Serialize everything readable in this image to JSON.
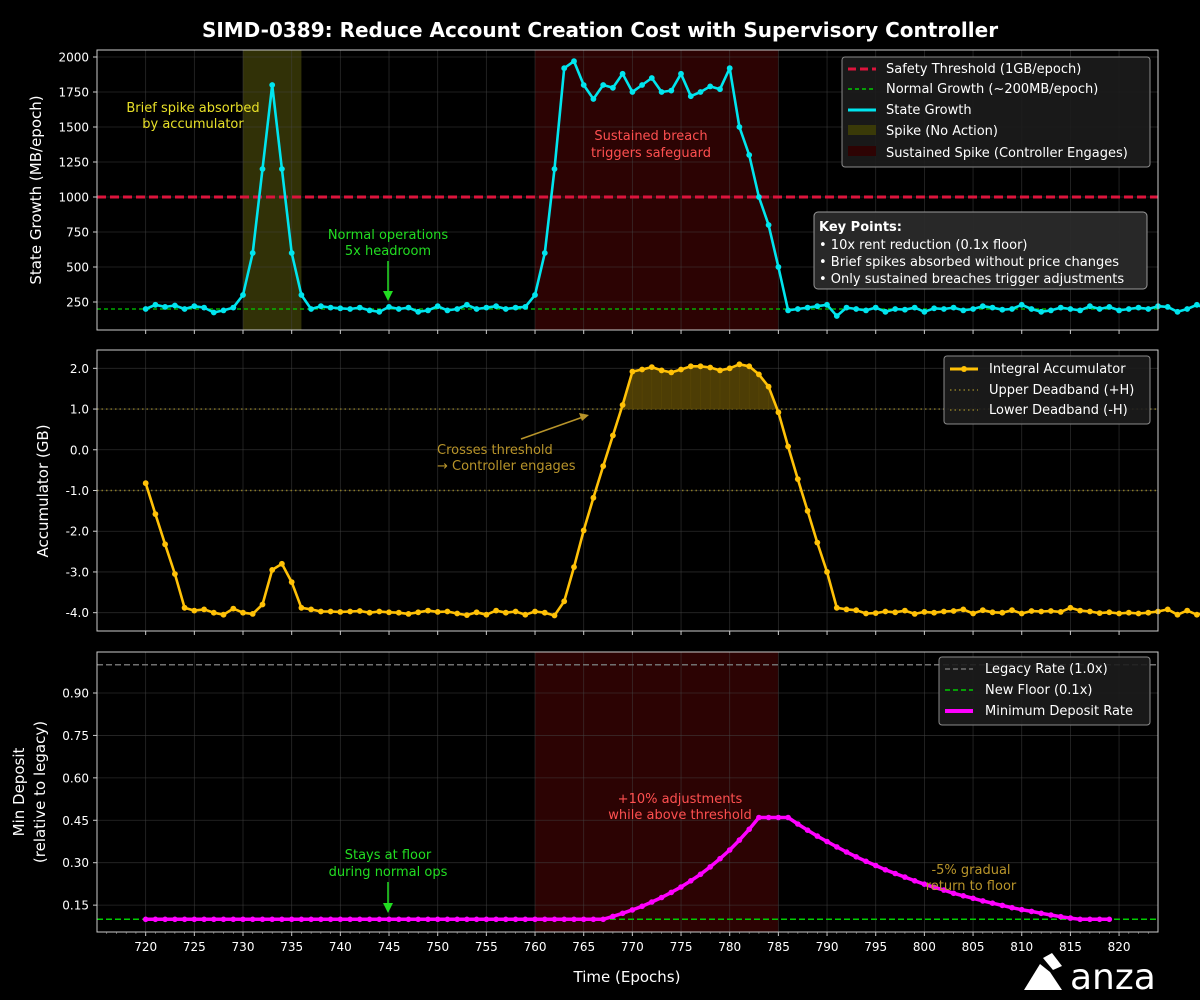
{
  "title": "SIMD-0389: Reduce Account Creation Cost with Supervisory Controller",
  "xlabel": "Time (Epochs)",
  "xticks": [
    720,
    725,
    730,
    735,
    740,
    745,
    750,
    755,
    760,
    765,
    770,
    775,
    780,
    785,
    790,
    795,
    800,
    805,
    810,
    815,
    820
  ],
  "logo_text": "anza",
  "colors": {
    "background": "#000000",
    "state": "#00e5ee",
    "accumulator": "#ffc107",
    "deposit": "#ff00ff",
    "threshold": "#dc143c",
    "normal": "#00cc00",
    "spike_fill": "#3a3a08",
    "sustained_fill": "#2e0303",
    "deadband": "#8a7a28",
    "legacy": "#707070",
    "text": "#ffffff",
    "grid": "#444444"
  },
  "chart_data": [
    {
      "type": "line",
      "ylabel": "State Growth (MB/epoch)",
      "xlim": [
        715,
        824
      ],
      "ylim": [
        50,
        2050
      ],
      "yticks": [
        250,
        500,
        750,
        1000,
        1250,
        1500,
        1750,
        2000
      ],
      "legend_position": "top-right",
      "grid": true,
      "legend": {
        "threshold": "Safety Threshold (1GB/epoch)",
        "normal": "Normal Growth (~200MB/epoch)",
        "state": "State Growth",
        "spike": "Spike (No Action)",
        "sustained": "Sustained Spike (Controller Engages)"
      },
      "threshold": 1000,
      "normal_level": 200,
      "spike_region": [
        730,
        736
      ],
      "sustained_region": [
        760,
        785
      ],
      "annotations": {
        "brief_line1": "Brief spike absorbed",
        "brief_line2": "by accumulator",
        "sustained_line1": "Sustained breach",
        "sustained_line2": "triggers safeguard",
        "normal_line1": "Normal operations",
        "normal_line2": "5x headroom"
      },
      "key_points": {
        "title": "Key Points:",
        "items": [
          "• 10x rent reduction (0.1x floor)",
          "• Brief spikes absorbed without price changes",
          "• Only sustained breaches trigger adjustments"
        ]
      },
      "x_start": 720,
      "series": [
        {
          "name": "State Growth",
          "values": [
            200,
            230,
            215,
            225,
            200,
            220,
            210,
            175,
            190,
            210,
            300,
            600,
            1200,
            1800,
            1200,
            600,
            300,
            200,
            220,
            210,
            205,
            200,
            210,
            190,
            180,
            215,
            200,
            210,
            180,
            190,
            220,
            190,
            200,
            230,
            200,
            210,
            220,
            200,
            210,
            215,
            300,
            600,
            1200,
            1920,
            1970,
            1800,
            1700,
            1800,
            1780,
            1880,
            1750,
            1800,
            1850,
            1750,
            1760,
            1880,
            1720,
            1750,
            1790,
            1770,
            1920,
            1500,
            1300,
            1000,
            800,
            500,
            190,
            200,
            210,
            220,
            230,
            150,
            210,
            200,
            190,
            210,
            180,
            200,
            195,
            210,
            180,
            205,
            200,
            210,
            190,
            200,
            220,
            210,
            195,
            200,
            230,
            200,
            180,
            190,
            210,
            200,
            190,
            220,
            200,
            215,
            190,
            200,
            210,
            200,
            220,
            215,
            180,
            200,
            230,
            200
          ]
        }
      ]
    },
    {
      "type": "line",
      "ylabel": "Accumulator (GB)",
      "xlim": [
        715,
        824
      ],
      "ylim": [
        -4.45,
        2.45
      ],
      "yticks": [
        2.0,
        1.0,
        0.0,
        -1.0,
        -2.0,
        -3.0,
        -4.0
      ],
      "ytick_labels": [
        "2.0",
        "1.0",
        "0.0",
        "-1.0",
        "-2.0",
        "-3.0",
        "-4.0"
      ],
      "legend_position": "top-right",
      "grid": true,
      "legend": {
        "acc": "Integral Accumulator",
        "upper": "Upper Deadband (+H)",
        "lower": "Lower Deadband (-H)"
      },
      "upper_deadband": 1.0,
      "lower_deadband": -1.0,
      "annotations": {
        "cross_line1": "Crosses threshold",
        "cross_line2": "→ Controller engages"
      },
      "x_start": 720,
      "series": [
        {
          "name": "Integral Accumulator",
          "values": [
            -0.82,
            -1.58,
            -2.32,
            -3.05,
            -3.88,
            -3.95,
            -3.92,
            -4.0,
            -4.05,
            -3.9,
            -4.0,
            -4.03,
            -3.8,
            -2.95,
            -2.8,
            -3.25,
            -3.88,
            -3.92,
            -3.97,
            -3.97,
            -3.98,
            -3.97,
            -3.96,
            -4.0,
            -3.97,
            -3.99,
            -4.0,
            -4.03,
            -3.99,
            -3.95,
            -3.98,
            -3.97,
            -4.02,
            -4.06,
            -3.99,
            -4.05,
            -3.95,
            -4.0,
            -3.97,
            -4.05,
            -3.97,
            -4.0,
            -4.07,
            -3.72,
            -2.88,
            -1.98,
            -1.18,
            -0.4,
            0.35,
            1.1,
            1.92,
            1.97,
            2.03,
            1.95,
            1.9,
            1.97,
            2.05,
            2.05,
            2.02,
            1.95,
            2.0,
            2.1,
            2.05,
            1.85,
            1.55,
            0.92,
            0.08,
            -0.72,
            -1.5,
            -2.28,
            -3.0,
            -3.88,
            -3.92,
            -3.94,
            -4.02,
            -4.01,
            -3.97,
            -3.99,
            -3.95,
            -4.03,
            -3.98,
            -4.0,
            -3.97,
            -3.96,
            -3.92,
            -4.02,
            -3.94,
            -3.99,
            -4.0,
            -3.94,
            -4.02,
            -3.96,
            -3.97,
            -3.96,
            -3.98,
            -3.88,
            -3.95,
            -3.97,
            -4.01,
            -3.99,
            -4.02,
            -4.0,
            -4.02,
            -4.0,
            -3.97,
            -3.92,
            -4.05,
            -3.95,
            -4.05,
            -3.98,
            -3.93
          ]
        }
      ]
    },
    {
      "type": "line",
      "ylabel": "Min Deposit",
      "ylabel2": "(relative to legacy)",
      "xlim": [
        715,
        824
      ],
      "ylim": [
        0.055,
        1.045
      ],
      "yticks": [
        0.15,
        0.3,
        0.45,
        0.6,
        0.75,
        0.9
      ],
      "ytick_labels": [
        "0.15",
        "0.30",
        "0.45",
        "0.60",
        "0.75",
        "0.90"
      ],
      "legend_position": "top-right",
      "grid": true,
      "legend": {
        "legacy": "Legacy Rate (1.0x)",
        "floor": "New Floor (0.1x)",
        "rate": "Minimum Deposit Rate"
      },
      "legacy_level": 1.0,
      "floor_level": 0.1,
      "sustained_region": [
        760,
        785
      ],
      "annotations": {
        "adjust_line1": "+10% adjustments",
        "adjust_line2": "while above threshold",
        "floor_line1": "Stays at floor",
        "floor_line2": "during normal ops",
        "return_line1": "-5% gradual",
        "return_line2": "return to floor"
      },
      "x_start": 720,
      "series": [
        {
          "name": "Minimum Deposit Rate",
          "values": [
            0.1,
            0.1,
            0.1,
            0.1,
            0.1,
            0.1,
            0.1,
            0.1,
            0.1,
            0.1,
            0.1,
            0.1,
            0.1,
            0.1,
            0.1,
            0.1,
            0.1,
            0.1,
            0.1,
            0.1,
            0.1,
            0.1,
            0.1,
            0.1,
            0.1,
            0.1,
            0.1,
            0.1,
            0.1,
            0.1,
            0.1,
            0.1,
            0.1,
            0.1,
            0.1,
            0.1,
            0.1,
            0.1,
            0.1,
            0.1,
            0.1,
            0.1,
            0.1,
            0.1,
            0.1,
            0.1,
            0.1,
            0.1,
            0.11,
            0.121,
            0.133,
            0.146,
            0.161,
            0.177,
            0.195,
            0.214,
            0.236,
            0.259,
            0.285,
            0.314,
            0.345,
            0.38,
            0.418,
            0.46,
            0.46,
            0.46,
            0.46,
            0.437,
            0.415,
            0.394,
            0.375,
            0.356,
            0.338,
            0.321,
            0.305,
            0.29,
            0.275,
            0.262,
            0.249,
            0.236,
            0.224,
            0.213,
            0.203,
            0.192,
            0.183,
            0.174,
            0.165,
            0.157,
            0.149,
            0.141,
            0.134,
            0.128,
            0.121,
            0.115,
            0.109,
            0.104,
            0.1,
            0.1,
            0.1,
            0.1
          ]
        }
      ]
    }
  ]
}
